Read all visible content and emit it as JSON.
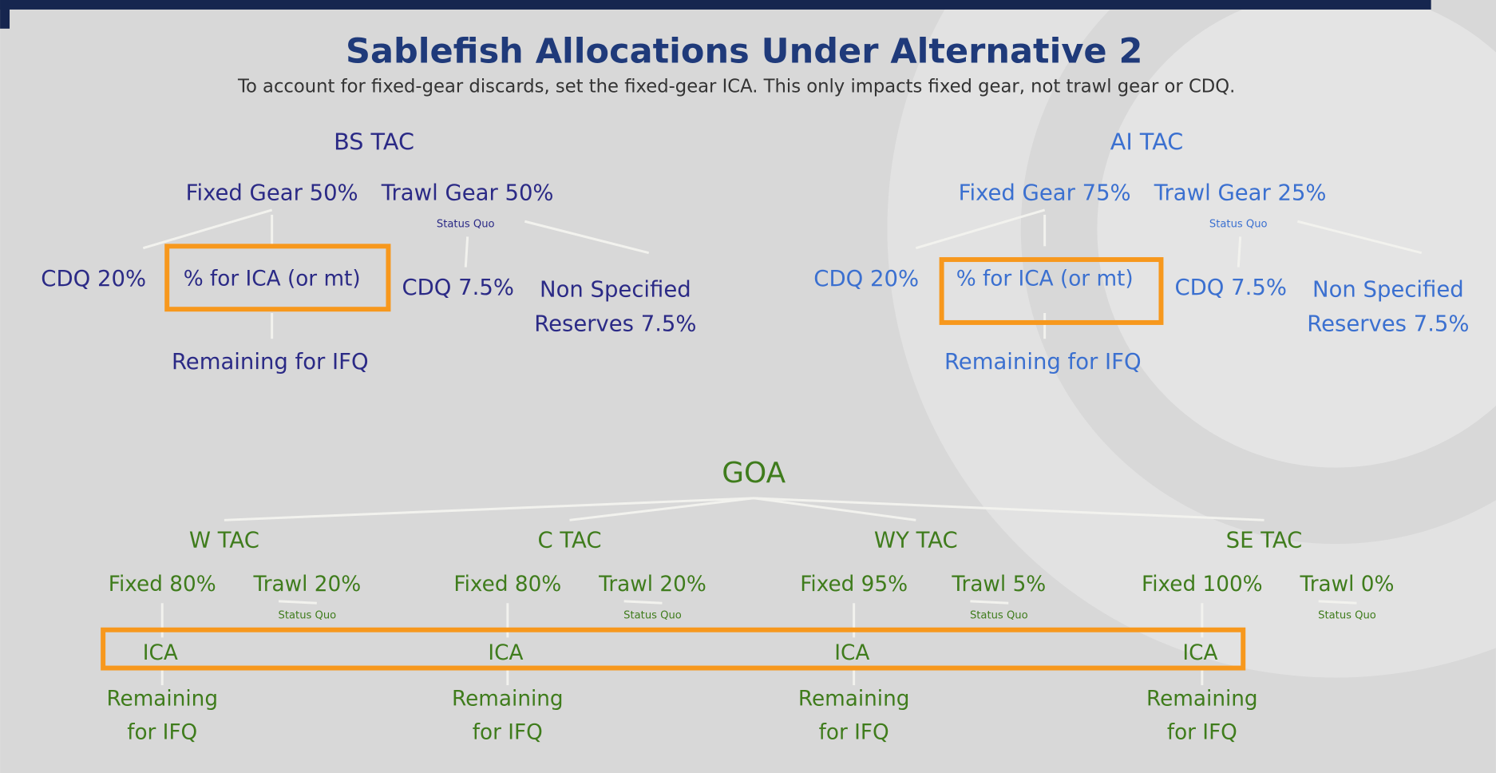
{
  "title": "Sablefish Allocations Under Alternative 2",
  "subtitle": "To account for fixed-gear discards, set the fixed-gear ICA. This only impacts fixed gear, not trawl gear or CDQ.",
  "bs": {
    "tac": "BS TAC",
    "fixed": "Fixed Gear 50%",
    "trawl": "Trawl Gear 50%",
    "status": "Status Quo",
    "cdq_fixed": "CDQ 20%",
    "ica": "% for ICA (or mt)",
    "cdq_trawl": "CDQ 7.5%",
    "reserves": [
      "Non Specified",
      "Reserves 7.5%"
    ],
    "remaining": "Remaining for IFQ"
  },
  "ai": {
    "tac": "AI TAC",
    "fixed": "Fixed Gear 75%",
    "trawl": "Trawl Gear 25%",
    "status": "Status Quo",
    "cdq_fixed": "CDQ 20%",
    "ica": "% for ICA (or mt)",
    "cdq_trawl": "CDQ 7.5%",
    "reserves": [
      "Non Specified",
      "Reserves 7.5%"
    ],
    "remaining": "Remaining for IFQ"
  },
  "goa": {
    "label": "GOA",
    "regions": [
      {
        "tac": "W TAC",
        "fixed": "Fixed 80%",
        "trawl": "Trawl 20%",
        "status": "Status Quo",
        "ica": "ICA",
        "remaining": [
          "Remaining",
          "for IFQ"
        ]
      },
      {
        "tac": "C TAC",
        "fixed": "Fixed 80%",
        "trawl": "Trawl 20%",
        "status": "Status Quo",
        "ica": "ICA",
        "remaining": [
          "Remaining",
          "for IFQ"
        ]
      },
      {
        "tac": "WY TAC",
        "fixed": "Fixed 95%",
        "trawl": "Trawl 5%",
        "status": "Status Quo",
        "ica": "ICA",
        "remaining": [
          "Remaining",
          "for IFQ"
        ]
      },
      {
        "tac": "SE TAC",
        "fixed": "Fixed 100%",
        "trawl": "Trawl 0%",
        "status": "Status Quo",
        "ica": "ICA",
        "remaining": [
          "Remaining",
          "for IFQ"
        ]
      }
    ]
  }
}
